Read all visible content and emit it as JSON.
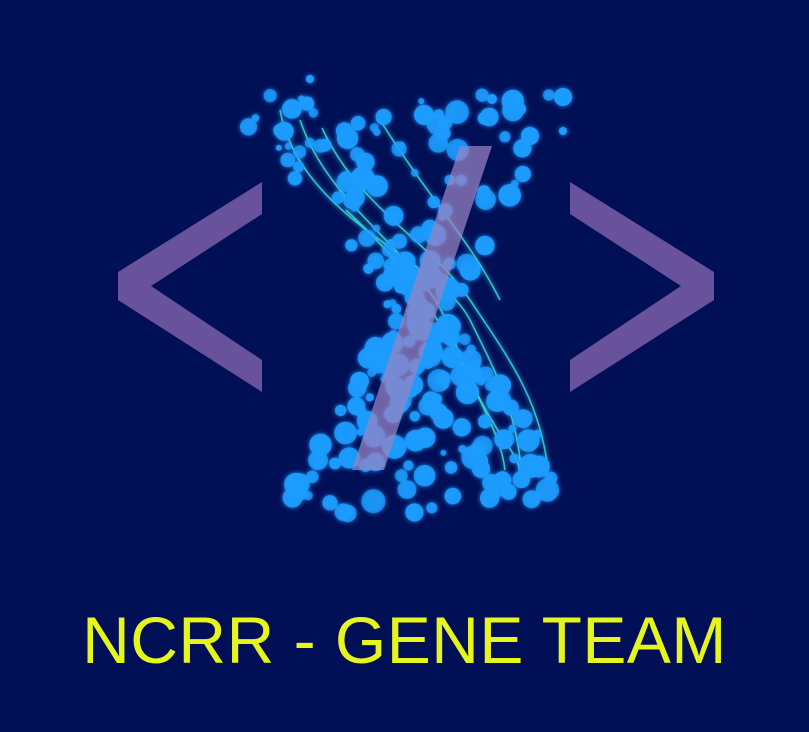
{
  "team_name": "NCRR - GENE TEAM",
  "colors": {
    "background": "#010f57",
    "bracket": "#7a5ea8",
    "slash": "#8a72b4",
    "dots": "#1c9cff",
    "strands": "#39d6e0",
    "team_name": "#e6f51c"
  },
  "icons": [
    "angle-bracket-left-icon",
    "angle-bracket-right-icon",
    "slash-icon",
    "dna-helix-icon"
  ]
}
